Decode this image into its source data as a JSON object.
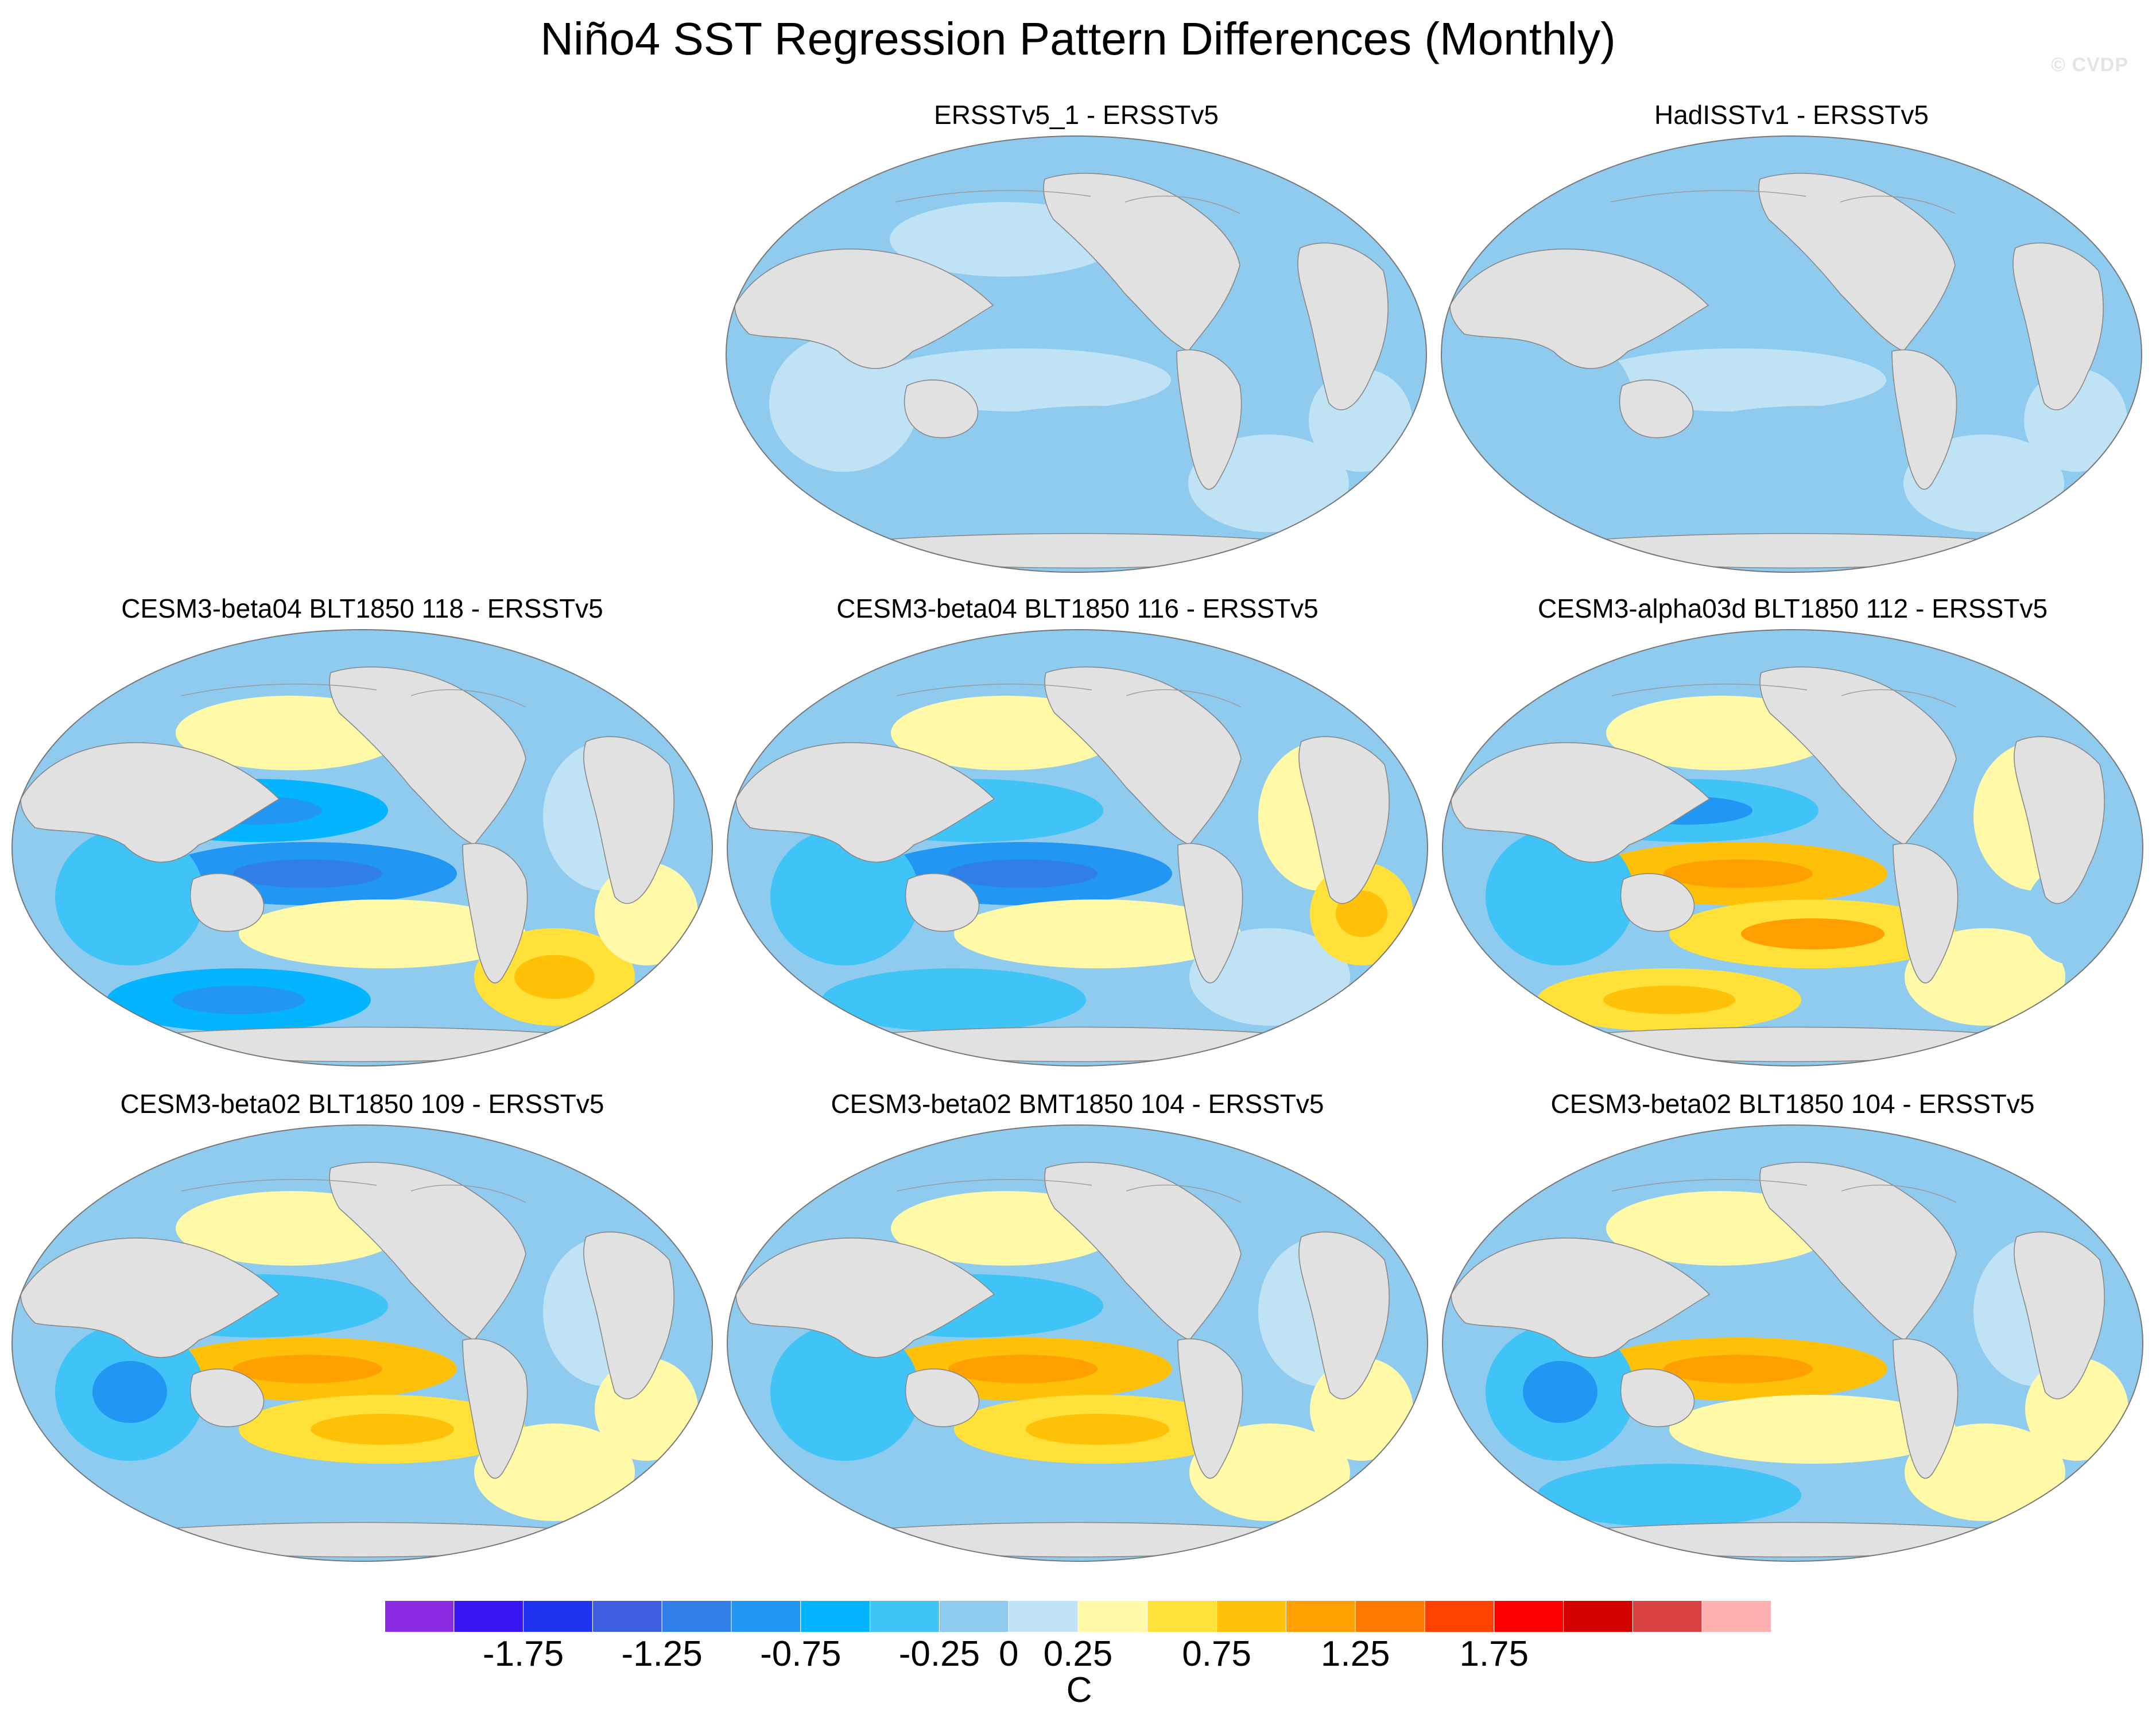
{
  "title": "Niño4 SST Regression Pattern Differences (Monthly)",
  "watermark": "© CVDP",
  "chart_data": {
    "type": "heatmap",
    "projection": "Robinson",
    "grid": false,
    "panels": [
      {
        "label": "ERSSTv5_1 - ERSSTv5",
        "region_values": [
          0.1,
          -0.1,
          0.1,
          -0.1,
          0.1,
          -0.1,
          0.1,
          -0.1,
          0.1
        ]
      },
      {
        "label": "HadISSTv1 - ERSSTv5",
        "region_values": [
          -0.1,
          -0.1,
          0.1,
          -0.1,
          -0.1,
          -0.1,
          0.1,
          -0.1,
          0.1
        ]
      },
      {
        "label": "CESM3-beta04 BLT1850 118 - ERSSTv5",
        "region_values": [
          0.3,
          -0.6,
          -0.8,
          0.4,
          -0.3,
          0.2,
          0.5,
          -0.7,
          0.3
        ]
      },
      {
        "label": "CESM3-beta04 BLT1850 116 - ERSSTv5",
        "region_values": [
          0.4,
          -0.3,
          -0.9,
          0.4,
          -0.4,
          0.3,
          0.2,
          -0.3,
          0.5
        ]
      },
      {
        "label": "CESM3-alpha03d BLT1850 112 - ERSSTv5",
        "region_values": [
          0.4,
          -0.5,
          0.8,
          0.7,
          -0.3,
          0.3,
          0.4,
          0.6,
          -0.2
        ]
      },
      {
        "label": "CESM3-beta02 BLT1850 109 - ERSSTv5",
        "region_values": [
          0.4,
          -0.3,
          0.9,
          0.6,
          -0.5,
          0.2,
          0.4,
          -0.2,
          0.3
        ]
      },
      {
        "label": "CESM3-beta02 BMT1850 104 - ERSSTv5",
        "region_values": [
          0.3,
          -0.3,
          0.9,
          0.5,
          -0.4,
          0.2,
          0.3,
          -0.2,
          0.4
        ]
      },
      {
        "label": "CESM3-beta02 BLT1850 104 - ERSSTv5",
        "region_values": [
          0.3,
          -0.2,
          0.9,
          0.4,
          -0.5,
          0.2,
          0.3,
          -0.3,
          0.3
        ]
      }
    ],
    "colorbar": {
      "label": "C",
      "levels": [
        -2,
        -1.75,
        -1.5,
        -1.25,
        -1,
        -0.75,
        -0.5,
        -0.25,
        0,
        0.25,
        0.5,
        0.75,
        1,
        1.25,
        1.5,
        1.75,
        2
      ],
      "tick_labels": [
        "-1.75",
        "-1.25",
        "-0.75",
        "-0.25",
        "0",
        "0.25",
        "0.75",
        "1.25",
        "1.75"
      ],
      "tick_values": [
        -1.75,
        -1.25,
        -0.75,
        -0.25,
        0,
        0.25,
        0.75,
        1.25,
        1.75
      ],
      "colors": [
        "#8a2be2",
        "#3a14f0",
        "#1f32f0",
        "#3d5fdf",
        "#2f7fe6",
        "#2196f3",
        "#03b4ff",
        "#40c4f8",
        "#8ecbef",
        "#bfe2f5",
        "#fff9a8",
        "#ffe13a",
        "#ffc107",
        "#ff9f00",
        "#ff7a00",
        "#ff4200",
        "#ff0000",
        "#d30000",
        "#d94242",
        "#ffb0b0"
      ]
    }
  }
}
